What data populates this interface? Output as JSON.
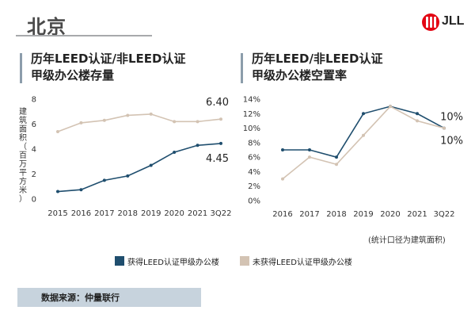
{
  "page_title": "北京",
  "logo_text": "JLL",
  "brand_color": "#e30613",
  "left_chart_title_lines": [
    "历年LEED认证/非LEED认证",
    "甲级办公楼存量"
  ],
  "left_chart_ylabel_chars": [
    "建",
    "筑",
    "面",
    "积",
    "（",
    "百",
    "万",
    "平",
    "方",
    "米",
    "）"
  ],
  "right_chart_title_lines": [
    "历年LEED/非LEED认证",
    "甲级办公楼空置率"
  ],
  "right_chart_note": "(统计口径为建筑面积)",
  "legend": [
    {
      "label": "获得LEED认证甲级办公楼",
      "color": "#1f4e6e"
    },
    {
      "label": "未获得LEED认证甲级办公楼",
      "color": "#d3c3b3"
    }
  ],
  "source_text": "数据来源：仲量联行",
  "chart_data": [
    {
      "type": "line",
      "title": "历年LEED认证/非LEED认证甲级办公楼存量",
      "ylabel": "建筑面积（百万平方米）",
      "categories": [
        "2015",
        "2016",
        "2017",
        "2018",
        "2019",
        "2020",
        "2021",
        "3Q22"
      ],
      "ylim": [
        0,
        8
      ],
      "yticks": [
        0,
        2,
        4,
        6,
        8
      ],
      "ytick_labels": [
        "0",
        "2",
        "4",
        "6",
        "8"
      ],
      "grid": false,
      "series": [
        {
          "name": "获得LEED认证甲级办公楼",
          "color": "#1f4e6e",
          "values": [
            0.6,
            0.75,
            1.5,
            1.85,
            2.7,
            3.75,
            4.3,
            4.45
          ]
        },
        {
          "name": "未获得LEED认证甲级办公楼",
          "color": "#d3c3b3",
          "values": [
            5.4,
            6.1,
            6.3,
            6.7,
            6.8,
            6.2,
            6.2,
            6.4
          ]
        }
      ],
      "data_labels": [
        {
          "text": "6.40",
          "series": 1,
          "index": 7
        },
        {
          "text": "4.45",
          "series": 0,
          "index": 7
        }
      ]
    },
    {
      "type": "line",
      "title": "历年LEED/非LEED认证甲级办公楼空置率",
      "categories": [
        "2016",
        "2017",
        "2018",
        "2019",
        "2020",
        "2021",
        "3Q22"
      ],
      "ylim": [
        0,
        14
      ],
      "yticks": [
        0,
        2,
        4,
        6,
        8,
        10,
        12,
        14
      ],
      "ytick_labels": [
        "0%",
        "2%",
        "4%",
        "6%",
        "8%",
        "10%",
        "12%",
        "14%"
      ],
      "grid": false,
      "series": [
        {
          "name": "获得LEED认证甲级办公楼",
          "color": "#1f4e6e",
          "values": [
            7,
            7,
            6,
            12,
            13,
            12,
            10
          ]
        },
        {
          "name": "未获得LEED认证甲级办公楼",
          "color": "#d3c3b3",
          "values": [
            3,
            6,
            5,
            9,
            13,
            11,
            10
          ]
        }
      ],
      "data_labels": [
        {
          "text": "10%",
          "series": 0,
          "index": 6
        },
        {
          "text": "10%",
          "series": 1,
          "index": 6
        }
      ]
    }
  ]
}
